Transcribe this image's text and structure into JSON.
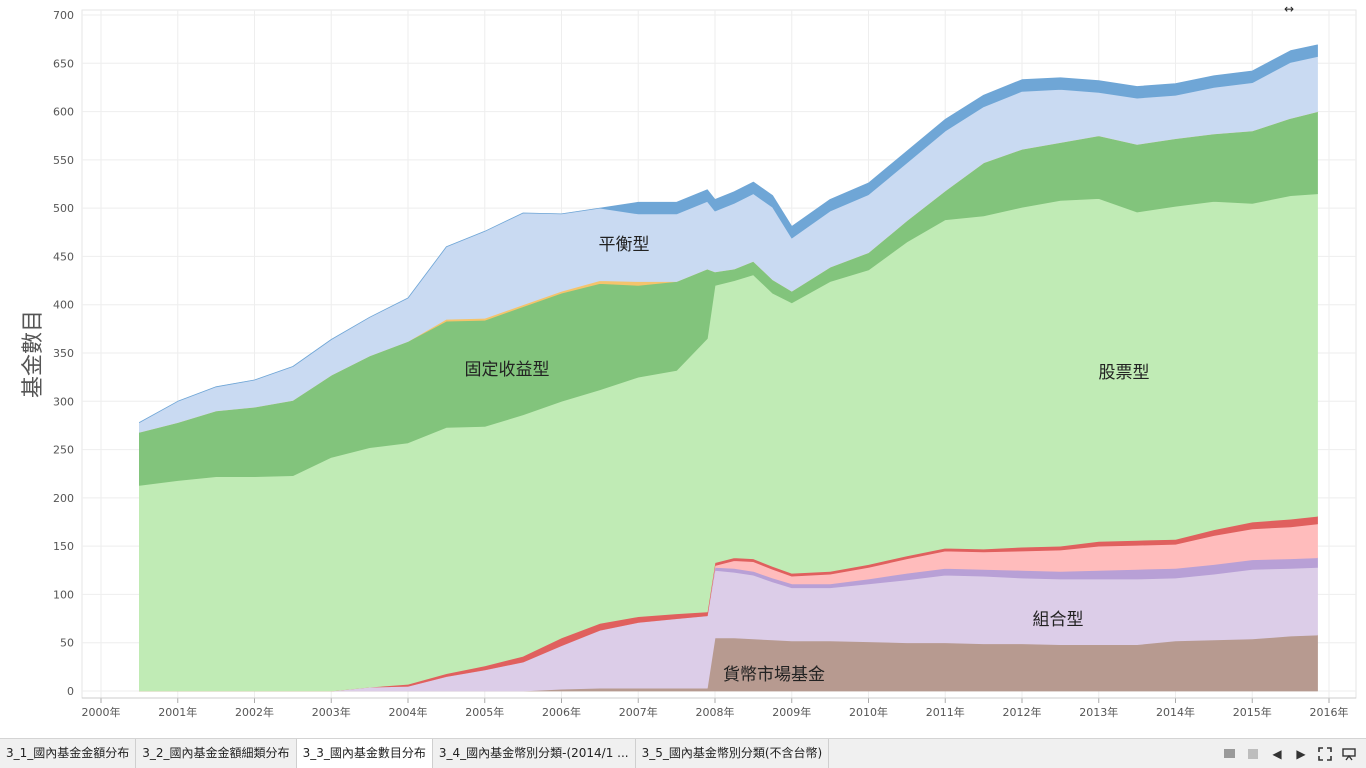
{
  "chart_data": {
    "type": "area",
    "title": "",
    "xlabel": "",
    "ylabel": "基金數目",
    "ylim": [
      0,
      700
    ],
    "yticks": [
      0,
      50,
      100,
      150,
      200,
      250,
      300,
      350,
      400,
      450,
      500,
      550,
      600,
      650,
      700
    ],
    "xticks": [
      "2000年",
      "2001年",
      "2002年",
      "2003年",
      "2004年",
      "2005年",
      "2006年",
      "2007年",
      "2008年",
      "2009年",
      "2010年",
      "2011年",
      "2012年",
      "2013年",
      "2014年",
      "2015年",
      "2016年"
    ],
    "x": [
      2000.5,
      2001.0,
      2001.5,
      2002.0,
      2002.5,
      2003.0,
      2003.5,
      2004.0,
      2004.5,
      2005.0,
      2005.5,
      2006.0,
      2006.5,
      2007.0,
      2007.5,
      2007.9,
      2008.0,
      2008.25,
      2008.5,
      2008.75,
      2009.0,
      2009.5,
      2010.0,
      2010.5,
      2011.0,
      2011.5,
      2012.0,
      2012.5,
      2013.0,
      2013.5,
      2014.0,
      2014.5,
      2015.0,
      2015.5,
      2015.85
    ],
    "series": [
      {
        "name": "貨幣市場基金",
        "color": "#b79a90",
        "values": [
          0,
          0,
          0,
          0,
          0,
          0,
          0,
          0,
          0,
          0,
          0,
          2,
          3,
          3,
          3,
          3,
          55,
          55,
          54,
          53,
          52,
          52,
          51,
          50,
          50,
          49,
          49,
          48,
          48,
          48,
          52,
          53,
          54,
          57,
          58
        ]
      },
      {
        "name": "組合型",
        "color": "#dccde8",
        "values": [
          0,
          0,
          0,
          0,
          0,
          0,
          4,
          5,
          15,
          22,
          30,
          45,
          60,
          68,
          72,
          75,
          70,
          68,
          66,
          60,
          55,
          55,
          60,
          65,
          70,
          70,
          68,
          68,
          68,
          68,
          65,
          68,
          72,
          70,
          70
        ]
      },
      {
        "name": "",
        "color": "#b8a0d6",
        "values": [
          0,
          0,
          0,
          0,
          0,
          0,
          0,
          0,
          0,
          0,
          0,
          0,
          0,
          0,
          0,
          0,
          3,
          4,
          4,
          4,
          4,
          4,
          5,
          7,
          7,
          7,
          8,
          8,
          9,
          10,
          10,
          10,
          10,
          10,
          10
        ]
      },
      {
        "name": "",
        "color": "#ffbcbc",
        "values": [
          0,
          0,
          0,
          0,
          0,
          0,
          0,
          0,
          0,
          0,
          0,
          0,
          0,
          0,
          0,
          0,
          2,
          8,
          10,
          9,
          8,
          10,
          12,
          15,
          18,
          18,
          20,
          22,
          25,
          25,
          25,
          30,
          32,
          33,
          35
        ]
      },
      {
        "name": "",
        "color": "#e0605e",
        "values": [
          0,
          0,
          0,
          0,
          0,
          0,
          0,
          2,
          3,
          4,
          6,
          8,
          7,
          6,
          5,
          4,
          3,
          3,
          3,
          3,
          3,
          3,
          3,
          3,
          3,
          3,
          4,
          4,
          5,
          5,
          5,
          6,
          7,
          8,
          8
        ]
      },
      {
        "name": "股票型",
        "color": "#c0ebb5",
        "values": [
          213,
          218,
          222,
          222,
          223,
          242,
          248,
          250,
          255,
          248,
          250,
          245,
          242,
          248,
          252,
          283,
          287,
          287,
          294,
          283,
          280,
          300,
          305,
          325,
          340,
          345,
          352,
          358,
          355,
          340,
          345,
          340,
          330,
          335,
          334
        ]
      },
      {
        "name": "固定收益型",
        "color": "#82c47c",
        "values": [
          55,
          60,
          68,
          72,
          78,
          85,
          95,
          105,
          110,
          110,
          112,
          112,
          110,
          95,
          92,
          72,
          14,
          12,
          14,
          14,
          12,
          15,
          18,
          22,
          30,
          55,
          60,
          60,
          65,
          70,
          70,
          70,
          75,
          80,
          85
        ]
      },
      {
        "name": "",
        "color": "#f5c46c",
        "values": [
          0,
          0,
          0,
          0,
          0,
          0,
          0,
          0,
          2,
          2,
          2,
          2,
          3,
          4,
          0,
          0,
          0,
          0,
          0,
          0,
          0,
          0,
          0,
          0,
          0,
          0,
          0,
          0,
          0,
          0,
          0,
          0,
          0,
          0,
          0
        ]
      },
      {
        "name": "平衡型",
        "color": "#c9daf2",
        "values": [
          10,
          22,
          25,
          28,
          35,
          37,
          40,
          45,
          75,
          90,
          95,
          80,
          75,
          70,
          70,
          70,
          63,
          68,
          70,
          75,
          55,
          58,
          60,
          60,
          62,
          58,
          60,
          55,
          45,
          48,
          45,
          48,
          50,
          58,
          57
        ]
      },
      {
        "name": "",
        "color": "#6fa6d6",
        "values": [
          0,
          0,
          0,
          0,
          0,
          0,
          0,
          0,
          0,
          0,
          0,
          0,
          0,
          12,
          12,
          12,
          12,
          12,
          12,
          12,
          12,
          12,
          12,
          12,
          12,
          12,
          12,
          12,
          12,
          12,
          12,
          12,
          12,
          12,
          12
        ]
      }
    ],
    "annotations": [
      "平衡型",
      "固定收益型",
      "股票型",
      "組合型",
      "貨幣市場基金"
    ],
    "grid": true
  },
  "tabs": [
    {
      "label": "3_1_國內基金金額分布"
    },
    {
      "label": "3_2_國內基金金額細類分布"
    },
    {
      "label": "3_3_國內基金數目分布"
    },
    {
      "label": "3_4_國內基金幣別分類-(2014/1 ..."
    },
    {
      "label": "3_5_國內基金幣別分類(不含台幣)"
    }
  ],
  "active_tab": 2,
  "icons": [
    "grid-view-icon",
    "single-view-icon",
    "prev-sheet-icon",
    "next-sheet-icon",
    "fullscreen-icon",
    "presentation-icon",
    "resize-arrow-icon"
  ]
}
